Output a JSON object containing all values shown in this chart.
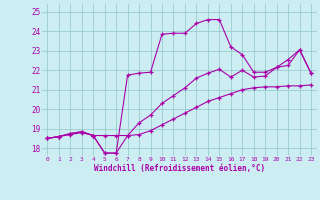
{
  "xlabel": "Windchill (Refroidissement éolien,°C)",
  "bg_color": "#cceef2",
  "line_color": "#aa00aa",
  "grid_color": "#99cccc",
  "xlim": [
    -0.5,
    23.5
  ],
  "ylim": [
    17.6,
    25.4
  ],
  "yticks": [
    18,
    19,
    20,
    21,
    22,
    23,
    24,
    25
  ],
  "xticks": [
    0,
    1,
    2,
    3,
    4,
    5,
    6,
    7,
    8,
    9,
    10,
    11,
    12,
    13,
    14,
    15,
    16,
    17,
    18,
    19,
    20,
    21,
    22,
    23
  ],
  "line1_x": [
    0,
    1,
    2,
    3,
    4,
    5,
    6,
    7,
    8,
    9,
    10,
    11,
    12,
    13,
    14,
    15,
    16,
    17,
    18,
    19,
    20,
    21,
    22,
    23
  ],
  "line1_y": [
    18.5,
    18.6,
    18.7,
    18.8,
    18.65,
    18.65,
    18.65,
    18.65,
    18.7,
    18.9,
    19.2,
    19.5,
    19.8,
    20.1,
    20.4,
    20.6,
    20.8,
    21.0,
    21.1,
    21.15,
    21.15,
    21.2,
    21.2,
    21.25
  ],
  "line2_x": [
    0,
    1,
    2,
    3,
    4,
    5,
    6,
    7,
    8,
    9,
    10,
    11,
    12,
    13,
    14,
    15,
    16,
    17,
    18,
    19,
    20,
    21,
    22,
    23
  ],
  "line2_y": [
    18.5,
    18.6,
    18.75,
    18.85,
    18.65,
    17.75,
    17.75,
    21.75,
    21.85,
    21.9,
    23.85,
    23.9,
    23.9,
    24.4,
    24.6,
    24.6,
    23.2,
    22.8,
    21.9,
    21.9,
    22.15,
    22.55,
    23.05,
    21.85
  ],
  "line3_x": [
    0,
    1,
    2,
    3,
    4,
    5,
    6,
    7,
    8,
    9,
    10,
    11,
    12,
    13,
    14,
    15,
    16,
    17,
    18,
    19,
    20,
    21,
    22,
    23
  ],
  "line3_y": [
    18.5,
    18.6,
    18.75,
    18.85,
    18.65,
    17.75,
    17.75,
    18.65,
    19.3,
    19.7,
    20.3,
    20.7,
    21.1,
    21.6,
    21.85,
    22.05,
    21.65,
    22.0,
    21.65,
    21.7,
    22.15,
    22.25,
    23.05,
    21.85
  ]
}
